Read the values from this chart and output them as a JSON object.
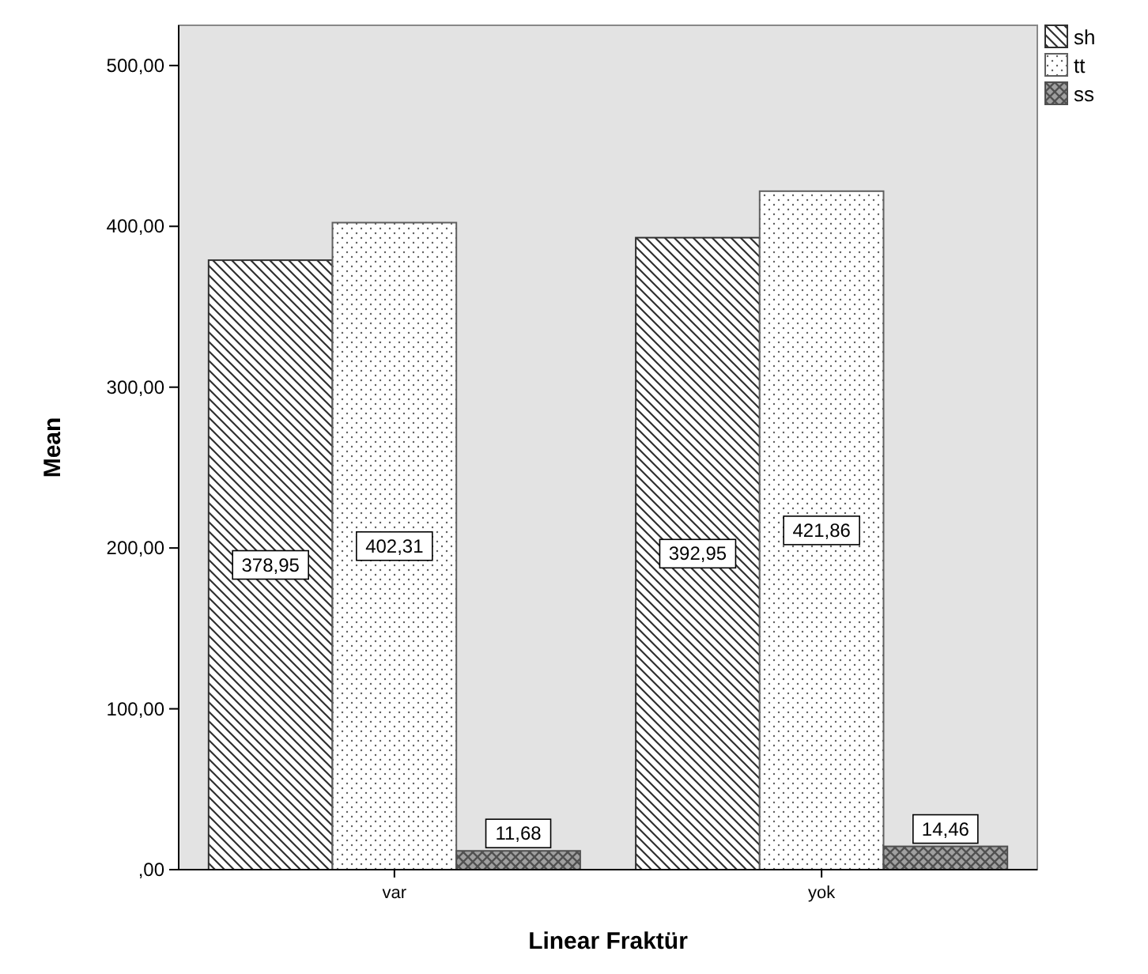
{
  "chart_data": {
    "type": "bar",
    "xlabel": "Linear Fraktür",
    "ylabel": "Mean",
    "categories": [
      "var",
      "yok"
    ],
    "series": [
      {
        "name": "sh",
        "color": "#303030",
        "values": [
          378.95,
          392.95
        ],
        "value_labels": [
          "378,95",
          "392,95"
        ]
      },
      {
        "name": "tt",
        "color": "#606060",
        "values": [
          402.31,
          421.86
        ],
        "value_labels": [
          "402,31",
          "421,86"
        ]
      },
      {
        "name": "ss",
        "color": "#505050",
        "values": [
          11.68,
          14.46
        ],
        "value_labels": [
          "11,68",
          "14,46"
        ]
      }
    ],
    "ylim": [
      0,
      525
    ],
    "yticks": [
      {
        "value": 0,
        "label": ",00"
      },
      {
        "value": 100,
        "label": "100,00"
      },
      {
        "value": 200,
        "label": "200,00"
      },
      {
        "value": 300,
        "label": "300,00"
      },
      {
        "value": 400,
        "label": "400,00"
      },
      {
        "value": 500,
        "label": "500,00"
      }
    ],
    "legend": "top right",
    "grid": false
  }
}
